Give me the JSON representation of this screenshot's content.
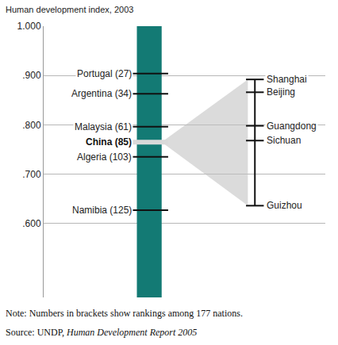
{
  "chart_data": {
    "type": "range",
    "y_label": "Human development index, 2003",
    "ylim": [
      0.45,
      1.0
    ],
    "yticks": [
      {
        "value": 0.6,
        "label": ".600"
      },
      {
        "value": 0.7,
        "label": ".700"
      },
      {
        "value": 0.8,
        "label": ".800"
      },
      {
        "value": 0.9,
        "label": ".900"
      },
      {
        "value": 1.0,
        "label": "1.000"
      }
    ],
    "grid": true,
    "color": "#137a74",
    "countries": {
      "categories": [
        "Portugal (27)",
        "Argentina (34)",
        "Malaysia (61)",
        "Algeria (103)",
        "Namibia (125)"
      ],
      "values": [
        0.904,
        0.863,
        0.796,
        0.735,
        0.627
      ]
    },
    "china": {
      "label": "China (85)",
      "value": 0.765
    },
    "provinces": {
      "categories": [
        "Shanghai",
        "Beijing",
        "Guangdong",
        "Sichuan",
        "Guizhou"
      ],
      "values": [
        0.892,
        0.866,
        0.798,
        0.768,
        0.636
      ]
    },
    "note": "Note: Numbers in brackets show rankings among 177 nations.",
    "source": "Source: UNDP, ",
    "source_title": "Human Development Report 2005"
  }
}
